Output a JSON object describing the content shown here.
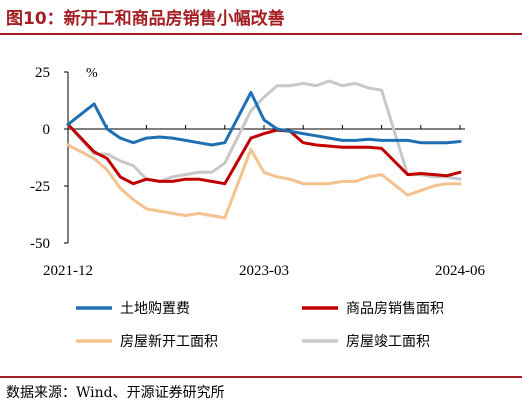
{
  "figure": {
    "title": "图10：新开工和商品房销售小幅改善",
    "source": "数据来源：Wind、开源证券研究所"
  },
  "chart_data": {
    "type": "line",
    "unit_label": "%",
    "ylim": [
      -50,
      25
    ],
    "yticks": [
      25,
      0,
      -25,
      -50
    ],
    "x_tick_labels": [
      "2021-12",
      "2023-03",
      "2024-06"
    ],
    "grid": false,
    "legend_position": "bottom",
    "series": [
      {
        "name": "土地购置费",
        "color": "#1f6fb4",
        "values": [
          [
            "2021-12",
            2
          ],
          [
            "2022-02",
            11
          ],
          [
            "2022-03",
            0
          ],
          [
            "2022-04",
            -4
          ],
          [
            "2022-05",
            -6
          ],
          [
            "2022-06",
            -4
          ],
          [
            "2022-07",
            -3.5
          ],
          [
            "2022-08",
            -4
          ],
          [
            "2022-09",
            -5
          ],
          [
            "2022-10",
            -6
          ],
          [
            "2022-11",
            -7
          ],
          [
            "2022-12",
            -6
          ],
          [
            "2023-02",
            16
          ],
          [
            "2023-03",
            4
          ],
          [
            "2023-04",
            0
          ],
          [
            "2023-05",
            -1
          ],
          [
            "2023-06",
            -2
          ],
          [
            "2023-07",
            -3
          ],
          [
            "2023-08",
            -4
          ],
          [
            "2023-09",
            -5
          ],
          [
            "2023-10",
            -5
          ],
          [
            "2023-11",
            -4.5
          ],
          [
            "2023-12",
            -5
          ],
          [
            "2024-02",
            -5
          ],
          [
            "2024-03",
            -6
          ],
          [
            "2024-04",
            -6
          ],
          [
            "2024-05",
            -6
          ],
          [
            "2024-06",
            -5.5
          ]
        ]
      },
      {
        "name": "商品房销售面积",
        "color": "#c00000",
        "values": [
          [
            "2021-12",
            2
          ],
          [
            "2022-02",
            -10
          ],
          [
            "2022-03",
            -13
          ],
          [
            "2022-04",
            -21
          ],
          [
            "2022-05",
            -24
          ],
          [
            "2022-06",
            -22
          ],
          [
            "2022-07",
            -23
          ],
          [
            "2022-08",
            -23
          ],
          [
            "2022-09",
            -22
          ],
          [
            "2022-10",
            -22
          ],
          [
            "2022-11",
            -23
          ],
          [
            "2022-12",
            -24
          ],
          [
            "2023-02",
            -4
          ],
          [
            "2023-03",
            -2
          ],
          [
            "2023-04",
            -0.5
          ],
          [
            "2023-05",
            -1
          ],
          [
            "2023-06",
            -6
          ],
          [
            "2023-07",
            -7
          ],
          [
            "2023-08",
            -7.5
          ],
          [
            "2023-09",
            -8
          ],
          [
            "2023-10",
            -8
          ],
          [
            "2023-11",
            -8
          ],
          [
            "2023-12",
            -8.5
          ],
          [
            "2024-02",
            -20
          ],
          [
            "2024-03",
            -19.5
          ],
          [
            "2024-04",
            -20
          ],
          [
            "2024-05",
            -20.5
          ],
          [
            "2024-06",
            -19
          ]
        ]
      },
      {
        "name": "房屋新开工面积",
        "color": "#f5c18e",
        "values": [
          [
            "2021-12",
            -7
          ],
          [
            "2022-02",
            -13
          ],
          [
            "2022-03",
            -18
          ],
          [
            "2022-04",
            -26
          ],
          [
            "2022-05",
            -31
          ],
          [
            "2022-06",
            -35
          ],
          [
            "2022-07",
            -36
          ],
          [
            "2022-08",
            -37
          ],
          [
            "2022-09",
            -38
          ],
          [
            "2022-10",
            -37
          ],
          [
            "2022-11",
            -38
          ],
          [
            "2022-12",
            -39
          ],
          [
            "2023-02",
            -9
          ],
          [
            "2023-03",
            -19
          ],
          [
            "2023-04",
            -21
          ],
          [
            "2023-05",
            -22
          ],
          [
            "2023-06",
            -24
          ],
          [
            "2023-07",
            -24
          ],
          [
            "2023-08",
            -24
          ],
          [
            "2023-09",
            -23
          ],
          [
            "2023-10",
            -23
          ],
          [
            "2023-11",
            -21
          ],
          [
            "2023-12",
            -20
          ],
          [
            "2024-02",
            -29
          ],
          [
            "2024-03",
            -27
          ],
          [
            "2024-04",
            -25
          ],
          [
            "2024-05",
            -24
          ],
          [
            "2024-06",
            -24
          ]
        ]
      },
      {
        "name": "房屋竣工面积",
        "color": "#c8c8c8",
        "values": [
          [
            "2021-12",
            2
          ],
          [
            "2022-02",
            -11
          ],
          [
            "2022-03",
            -11
          ],
          [
            "2022-04",
            -14
          ],
          [
            "2022-05",
            -16
          ],
          [
            "2022-06",
            -22
          ],
          [
            "2022-07",
            -23
          ],
          [
            "2022-08",
            -21
          ],
          [
            "2022-09",
            -20
          ],
          [
            "2022-10",
            -19
          ],
          [
            "2022-11",
            -19
          ],
          [
            "2022-12",
            -15
          ],
          [
            "2023-02",
            8
          ],
          [
            "2023-03",
            14
          ],
          [
            "2023-04",
            19
          ],
          [
            "2023-05",
            19
          ],
          [
            "2023-06",
            20
          ],
          [
            "2023-07",
            19
          ],
          [
            "2023-08",
            21
          ],
          [
            "2023-09",
            19
          ],
          [
            "2023-10",
            20
          ],
          [
            "2023-11",
            18
          ],
          [
            "2023-12",
            17
          ],
          [
            "2024-02",
            -20
          ],
          [
            "2024-03",
            -20
          ],
          [
            "2024-04",
            -21
          ],
          [
            "2024-05",
            -21
          ],
          [
            "2024-06",
            -22
          ]
        ]
      }
    ]
  }
}
